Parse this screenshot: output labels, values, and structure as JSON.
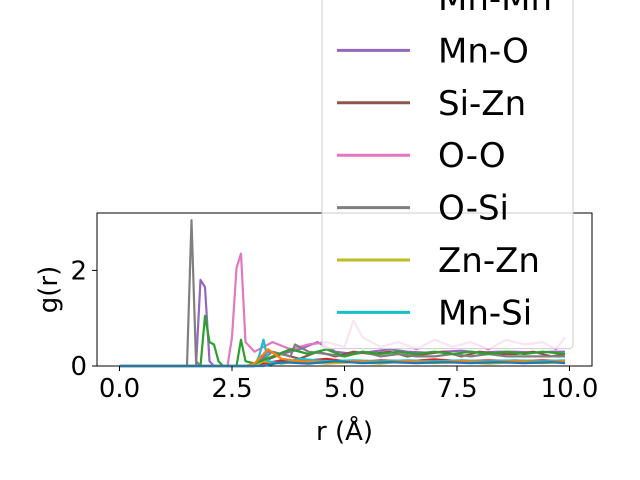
{
  "chart_data": {
    "type": "line",
    "xlabel": "r (Å)",
    "ylabel": "g(r)",
    "xlim": [
      -0.5,
      10.5
    ],
    "ylim": [
      0,
      3.2
    ],
    "xticks": [
      0.0,
      2.5,
      5.0,
      7.5,
      10.0
    ],
    "xtick_labels": [
      "0.0",
      "2.5",
      "5.0",
      "7.5",
      "10.0"
    ],
    "yticks": [
      0,
      2
    ],
    "ytick_labels": [
      "0",
      "2"
    ],
    "grid": false,
    "legend_position": "top-right",
    "series": [
      {
        "name": "Mn-Mn",
        "color": "#d62728",
        "points": [
          [
            0,
            0
          ],
          [
            3.0,
            0
          ],
          [
            3.2,
            0.05
          ],
          [
            3.6,
            0.12
          ],
          [
            4.0,
            0.1
          ],
          [
            4.6,
            0.15
          ],
          [
            5.2,
            0.08
          ],
          [
            5.8,
            0.12
          ],
          [
            6.4,
            0.1
          ],
          [
            7.0,
            0.14
          ],
          [
            7.6,
            0.1
          ],
          [
            8.2,
            0.12
          ],
          [
            8.8,
            0.1
          ],
          [
            9.4,
            0.12
          ],
          [
            9.9,
            0.1
          ]
        ]
      },
      {
        "name": "Mn-O",
        "color": "#9467bd",
        "points": [
          [
            0,
            0
          ],
          [
            1.7,
            0
          ],
          [
            1.8,
            1.8
          ],
          [
            1.9,
            1.65
          ],
          [
            2.0,
            0.1
          ],
          [
            2.1,
            0
          ],
          [
            3.0,
            0
          ],
          [
            3.3,
            0.3
          ],
          [
            3.6,
            0.25
          ],
          [
            4.0,
            0.35
          ],
          [
            4.4,
            0.5
          ],
          [
            4.8,
            0.3
          ],
          [
            5.2,
            0.25
          ],
          [
            5.6,
            0.3
          ],
          [
            6.0,
            0.35
          ],
          [
            6.4,
            0.3
          ],
          [
            6.8,
            0.28
          ],
          [
            7.2,
            0.3
          ],
          [
            7.6,
            0.32
          ],
          [
            8.0,
            0.28
          ],
          [
            8.4,
            0.3
          ],
          [
            8.8,
            0.3
          ],
          [
            9.2,
            0.28
          ],
          [
            9.6,
            0.3
          ],
          [
            9.9,
            0.3
          ]
        ]
      },
      {
        "name": "Si-Zn",
        "color": "#8c564b",
        "points": [
          [
            0,
            0
          ],
          [
            3.0,
            0
          ],
          [
            3.2,
            0.1
          ],
          [
            3.6,
            0.25
          ],
          [
            4.0,
            0.15
          ],
          [
            4.4,
            0.3
          ],
          [
            4.8,
            0.2
          ],
          [
            5.2,
            0.3
          ],
          [
            5.6,
            0.25
          ],
          [
            6.0,
            0.3
          ],
          [
            6.4,
            0.2
          ],
          [
            6.8,
            0.25
          ],
          [
            7.2,
            0.3
          ],
          [
            7.6,
            0.2
          ],
          [
            8.0,
            0.3
          ],
          [
            8.4,
            0.25
          ],
          [
            8.8,
            0.25
          ],
          [
            9.2,
            0.3
          ],
          [
            9.6,
            0.2
          ],
          [
            9.9,
            0.25
          ]
        ]
      },
      {
        "name": "O-O",
        "color": "#e377c2",
        "points": [
          [
            0,
            0
          ],
          [
            2.4,
            0
          ],
          [
            2.5,
            0.6
          ],
          [
            2.6,
            2.05
          ],
          [
            2.7,
            2.35
          ],
          [
            2.8,
            0.5
          ],
          [
            3.0,
            0.3
          ],
          [
            3.4,
            0.5
          ],
          [
            3.8,
            0.35
          ],
          [
            4.2,
            0.45
          ],
          [
            4.6,
            0.5
          ],
          [
            5.0,
            0.4
          ],
          [
            5.2,
            0.95
          ],
          [
            5.4,
            0.6
          ],
          [
            5.8,
            0.4
          ],
          [
            6.2,
            0.5
          ],
          [
            6.6,
            0.35
          ],
          [
            7.0,
            0.55
          ],
          [
            7.4,
            0.4
          ],
          [
            7.8,
            0.5
          ],
          [
            8.2,
            0.35
          ],
          [
            8.6,
            0.55
          ],
          [
            9.0,
            0.45
          ],
          [
            9.4,
            0.5
          ],
          [
            9.7,
            0.35
          ],
          [
            9.9,
            0.6
          ]
        ]
      },
      {
        "name": "O-Si",
        "color": "#7f7f7f",
        "points": [
          [
            0,
            0
          ],
          [
            1.5,
            0
          ],
          [
            1.6,
            3.05
          ],
          [
            1.7,
            0.1
          ],
          [
            1.8,
            0
          ],
          [
            3.0,
            0
          ],
          [
            3.4,
            0.3
          ],
          [
            3.8,
            0.2
          ],
          [
            3.9,
            0.45
          ],
          [
            4.2,
            0.3
          ],
          [
            4.6,
            0.25
          ],
          [
            5.0,
            0.2
          ],
          [
            5.4,
            0.3
          ],
          [
            5.8,
            0.2
          ],
          [
            6.2,
            0.25
          ],
          [
            6.6,
            0.2
          ],
          [
            7.0,
            0.2
          ],
          [
            7.4,
            0.25
          ],
          [
            7.8,
            0.2
          ],
          [
            8.2,
            0.25
          ],
          [
            8.6,
            0.2
          ],
          [
            9.0,
            0.2
          ],
          [
            9.4,
            0.2
          ],
          [
            9.9,
            0.2
          ]
        ]
      },
      {
        "name": "Zn-Zn",
        "color": "#bcbd22",
        "points": [
          [
            0,
            0
          ],
          [
            3.0,
            0
          ],
          [
            3.2,
            0.1
          ],
          [
            3.6,
            0.05
          ],
          [
            4.0,
            0.1
          ],
          [
            4.6,
            0.05
          ],
          [
            5.2,
            0.08
          ],
          [
            5.8,
            0.05
          ],
          [
            6.4,
            0.1
          ],
          [
            7.0,
            0.06
          ],
          [
            7.6,
            0.08
          ],
          [
            8.2,
            0.05
          ],
          [
            8.8,
            0.08
          ],
          [
            9.4,
            0.06
          ],
          [
            9.9,
            0.08
          ]
        ]
      },
      {
        "name": "Mn-Si",
        "color": "#17becf",
        "points": [
          [
            0,
            0
          ],
          [
            3.0,
            0
          ],
          [
            3.1,
            0.2
          ],
          [
            3.2,
            0.55
          ],
          [
            3.3,
            0.1
          ],
          [
            3.6,
            0.05
          ],
          [
            4.0,
            0.15
          ],
          [
            4.6,
            0.1
          ],
          [
            5.2,
            0.12
          ],
          [
            5.8,
            0.1
          ],
          [
            6.4,
            0.12
          ],
          [
            7.0,
            0.1
          ],
          [
            7.6,
            0.12
          ],
          [
            8.2,
            0.1
          ],
          [
            8.8,
            0.12
          ],
          [
            9.4,
            0.1
          ],
          [
            9.9,
            0.12
          ]
        ]
      },
      {
        "name": "",
        "color": "#2ca02c",
        "points": [
          [
            0,
            0
          ],
          [
            1.8,
            0
          ],
          [
            1.9,
            1.05
          ],
          [
            2.0,
            0.5
          ],
          [
            2.1,
            0.45
          ],
          [
            2.2,
            0.1
          ],
          [
            2.3,
            0
          ],
          [
            2.6,
            0
          ],
          [
            2.7,
            0.55
          ],
          [
            2.8,
            0.1
          ],
          [
            3.0,
            0.05
          ],
          [
            3.4,
            0.2
          ],
          [
            3.8,
            0.35
          ],
          [
            4.2,
            0.25
          ],
          [
            4.6,
            0.35
          ],
          [
            5.0,
            0.2
          ],
          [
            5.4,
            0.3
          ],
          [
            5.8,
            0.25
          ],
          [
            6.2,
            0.3
          ],
          [
            6.6,
            0.25
          ],
          [
            7.0,
            0.3
          ],
          [
            7.4,
            0.25
          ],
          [
            7.8,
            0.3
          ],
          [
            8.2,
            0.25
          ],
          [
            8.6,
            0.3
          ],
          [
            9.0,
            0.25
          ],
          [
            9.4,
            0.3
          ],
          [
            9.9,
            0.25
          ]
        ]
      },
      {
        "name": "",
        "color": "#ff7f0e",
        "points": [
          [
            0,
            0
          ],
          [
            2.8,
            0
          ],
          [
            3.0,
            0.05
          ],
          [
            3.3,
            0.35
          ],
          [
            3.6,
            0.15
          ],
          [
            4.0,
            0.1
          ],
          [
            4.6,
            0.08
          ],
          [
            5.2,
            0.1
          ],
          [
            5.8,
            0.08
          ],
          [
            6.4,
            0.1
          ],
          [
            7.0,
            0.08
          ],
          [
            7.6,
            0.1
          ],
          [
            8.2,
            0.08
          ],
          [
            8.8,
            0.1
          ],
          [
            9.4,
            0.08
          ],
          [
            9.9,
            0.1
          ]
        ]
      },
      {
        "name": "",
        "color": "#1f77b4",
        "points": [
          [
            0,
            0
          ],
          [
            3.2,
            0
          ],
          [
            3.6,
            0.08
          ],
          [
            4.2,
            0.05
          ],
          [
            4.8,
            0.1
          ],
          [
            5.4,
            0.06
          ],
          [
            6.0,
            0.08
          ],
          [
            6.6,
            0.06
          ],
          [
            7.2,
            0.08
          ],
          [
            7.8,
            0.06
          ],
          [
            8.4,
            0.08
          ],
          [
            9.0,
            0.06
          ],
          [
            9.6,
            0.08
          ],
          [
            9.9,
            0.06
          ]
        ]
      }
    ]
  }
}
